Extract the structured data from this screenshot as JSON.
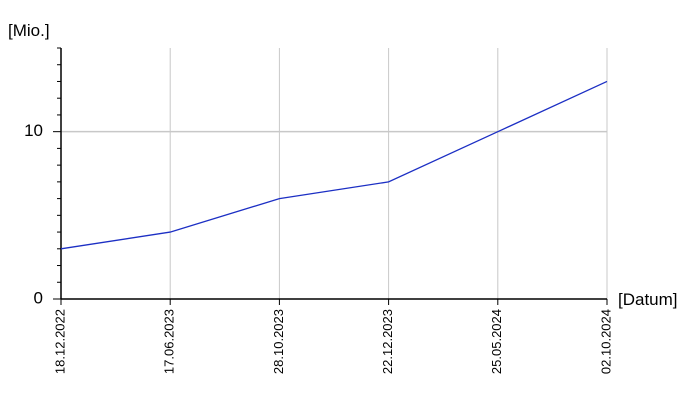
{
  "chart_data": {
    "type": "line",
    "y_label": "[Mio.]",
    "x_label": "[Datum]",
    "categories": [
      "18.12.2022",
      "17.06.2023",
      "28.10.2023",
      "22.12.2023",
      "25.05.2024",
      "02.10.2024"
    ],
    "series": [
      {
        "name": "Mio.",
        "color": "#1c2fc4",
        "values": [
          3,
          4,
          6,
          7,
          10,
          13
        ]
      }
    ],
    "ylim": [
      0,
      15
    ],
    "yticks": [
      0,
      10
    ],
    "yminorticks": [
      1,
      2,
      3,
      4,
      5,
      6,
      7,
      8,
      9,
      11,
      12,
      13,
      14,
      15
    ],
    "grid": true
  }
}
